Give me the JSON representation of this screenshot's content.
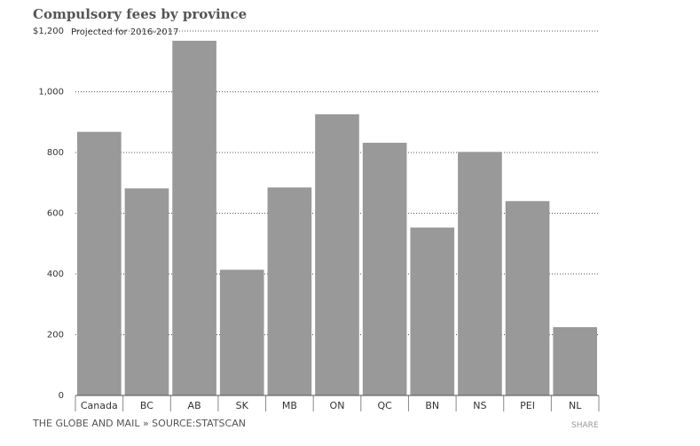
{
  "chart_data": {
    "type": "bar",
    "title": "Compulsory fees by province",
    "subtitle": "Projected for 2016-2017",
    "categories": [
      "Canada",
      "BC",
      "AB",
      "SK",
      "MB",
      "ON",
      "QC",
      "BN",
      "NS",
      "PEI",
      "NL"
    ],
    "values": [
      868,
      682,
      1168,
      414,
      685,
      926,
      832,
      553,
      802,
      640,
      225
    ],
    "y_ticks": [
      0,
      200,
      400,
      600,
      800,
      1000,
      1200
    ],
    "y_tick_labels": [
      "0",
      "200",
      "400",
      "600",
      "800",
      "1,000",
      "$1,200"
    ],
    "ylim": [
      0,
      1200
    ],
    "xlabel": "",
    "ylabel": "",
    "grid": true,
    "bar_color": "#999999"
  },
  "footer": {
    "source": "THE GLOBE AND MAIL » SOURCE:STATSCAN",
    "share": "SHARE"
  }
}
